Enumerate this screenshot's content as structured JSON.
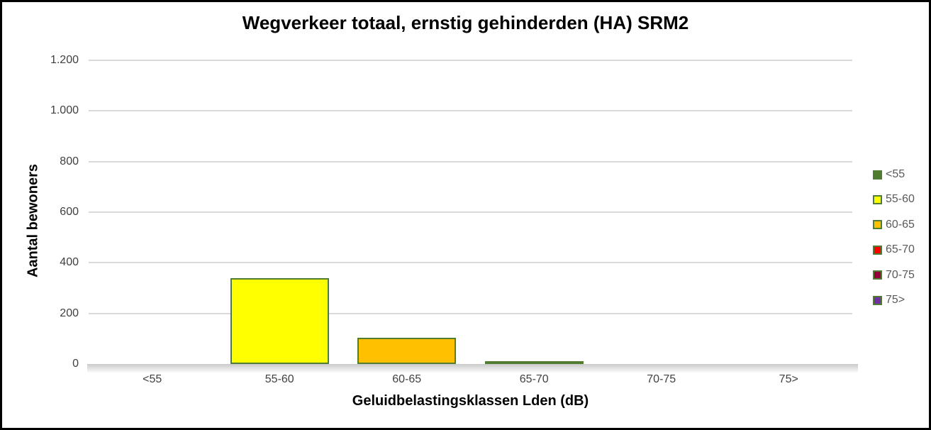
{
  "chart_data": {
    "type": "bar",
    "title": "Wegverkeer totaal, ernstig gehinderden (HA) SRM2",
    "xlabel": "Geluidbelastingsklassen Lden (dB)",
    "ylabel": "Aantal bewoners",
    "categories": [
      "<55",
      "55-60",
      "60-65",
      "65-70",
      "70-75",
      "75>"
    ],
    "values": [
      0,
      340,
      105,
      8,
      0,
      0
    ],
    "ylim": [
      0,
      1200
    ],
    "ytick_step": 200,
    "ytick_labels": [
      "0",
      "200",
      "400",
      "600",
      "800",
      "1.000",
      "1.200"
    ],
    "grid": true,
    "legend_position": "right",
    "legend": [
      {
        "label": "<55",
        "color": "#4f7b31"
      },
      {
        "label": "55-60",
        "color": "#ffff00"
      },
      {
        "label": "60-65",
        "color": "#ffc000"
      },
      {
        "label": "65-70",
        "color": "#ff0000"
      },
      {
        "label": "70-75",
        "color": "#94003a"
      },
      {
        "label": "75>",
        "color": "#7030a0"
      }
    ],
    "bar_border_color": "#507d32"
  },
  "colors": {
    "gridline": "#d9d9d9",
    "axis_text": "#404040",
    "legend_text": "#595959",
    "title_text": "#000000",
    "figure_border": "#000000",
    "plot_background": "#ffffff"
  }
}
